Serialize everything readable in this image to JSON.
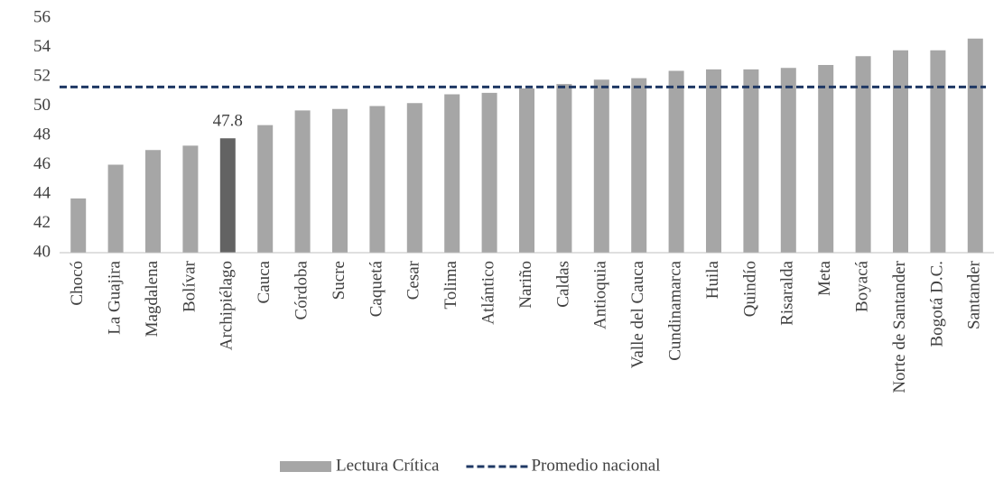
{
  "chart_data": {
    "type": "bar",
    "categories": [
      "Chocó",
      "La Guajira",
      "Magdalena",
      "Bolívar",
      "Archipiélago",
      "Cauca",
      "Córdoba",
      "Sucre",
      "Caquetá",
      "Cesar",
      "Tolima",
      "Atlántico",
      "Nariño",
      "Caldas",
      "Antioquia",
      "Valle del Cauca",
      "Cundinamarca",
      "Huila",
      "Quindío",
      "Risaralda",
      "Meta",
      "Boyacá",
      "Norte de Santander",
      "Bogotá D.C.",
      "Santander"
    ],
    "series": [
      {
        "name": "Lectura Crítica",
        "color": "#a6a6a6",
        "colors": [
          "#a6a6a6",
          "#a6a6a6",
          "#a6a6a6",
          "#a6a6a6",
          "#636363",
          "#a6a6a6",
          "#a6a6a6",
          "#a6a6a6",
          "#a6a6a6",
          "#a6a6a6",
          "#a6a6a6",
          "#a6a6a6",
          "#a6a6a6",
          "#a6a6a6",
          "#a6a6a6",
          "#a6a6a6",
          "#a6a6a6",
          "#a6a6a6",
          "#a6a6a6",
          "#a6a6a6",
          "#a6a6a6",
          "#a6a6a6",
          "#a6a6a6",
          "#a6a6a6",
          "#a6a6a6"
        ],
        "values": [
          43.7,
          46.0,
          47.0,
          47.3,
          47.8,
          48.7,
          49.7,
          49.8,
          50.0,
          50.2,
          50.8,
          50.9,
          51.2,
          51.5,
          51.8,
          51.9,
          52.4,
          52.5,
          52.5,
          52.6,
          52.8,
          53.4,
          53.8,
          53.8,
          54.6
        ],
        "labels_shown": [
          false,
          false,
          false,
          false,
          true,
          false,
          false,
          false,
          false,
          false,
          false,
          false,
          false,
          false,
          false,
          false,
          false,
          false,
          false,
          false,
          false,
          false,
          false,
          false,
          false
        ]
      },
      {
        "name": "Promedio nacional",
        "type": "reference_line",
        "color": "#1f3864",
        "dashed": true,
        "value": 51.3
      }
    ],
    "ylim": [
      40,
      56
    ],
    "yticks": [
      40,
      42,
      44,
      46,
      48,
      50,
      52,
      54,
      56
    ],
    "grid": false,
    "legend": "bottom"
  }
}
